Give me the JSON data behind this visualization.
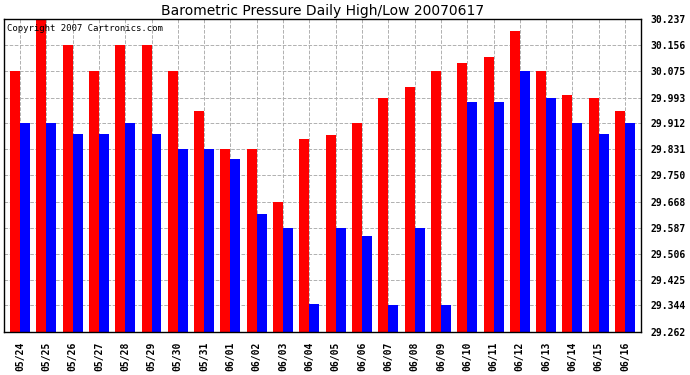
{
  "title": "Barometric Pressure Daily High/Low 20070617",
  "copyright": "Copyright 2007 Cartronics.com",
  "dates": [
    "05/24",
    "05/25",
    "05/26",
    "05/27",
    "05/28",
    "05/29",
    "05/30",
    "05/31",
    "06/01",
    "06/02",
    "06/03",
    "06/04",
    "06/05",
    "06/06",
    "06/07",
    "06/08",
    "06/09",
    "06/10",
    "06/11",
    "06/12",
    "06/13",
    "06/14",
    "06/15",
    "06/16"
  ],
  "highs": [
    30.075,
    30.237,
    30.156,
    30.075,
    30.156,
    30.156,
    30.075,
    29.95,
    29.831,
    29.831,
    29.668,
    29.862,
    29.875,
    29.912,
    29.993,
    30.025,
    30.075,
    30.1,
    30.118,
    30.2,
    30.075,
    30.0,
    29.993,
    29.95
  ],
  "lows": [
    29.912,
    29.912,
    29.88,
    29.88,
    29.912,
    29.88,
    29.831,
    29.831,
    29.8,
    29.63,
    29.587,
    29.35,
    29.587,
    29.56,
    29.344,
    29.587,
    29.344,
    29.98,
    29.98,
    30.075,
    29.993,
    29.912,
    29.88,
    29.912
  ],
  "yticks": [
    29.262,
    29.344,
    29.425,
    29.506,
    29.587,
    29.668,
    29.75,
    29.831,
    29.912,
    29.993,
    30.075,
    30.156,
    30.237
  ],
  "ymin": 29.262,
  "ymax": 30.237,
  "bar_color_high": "#ff0000",
  "bar_color_low": "#0000ff",
  "bg_color": "#ffffff",
  "grid_color": "#b0b0b0",
  "title_fontsize": 10,
  "tick_fontsize": 7,
  "copyright_fontsize": 6.5,
  "bar_width": 0.38
}
